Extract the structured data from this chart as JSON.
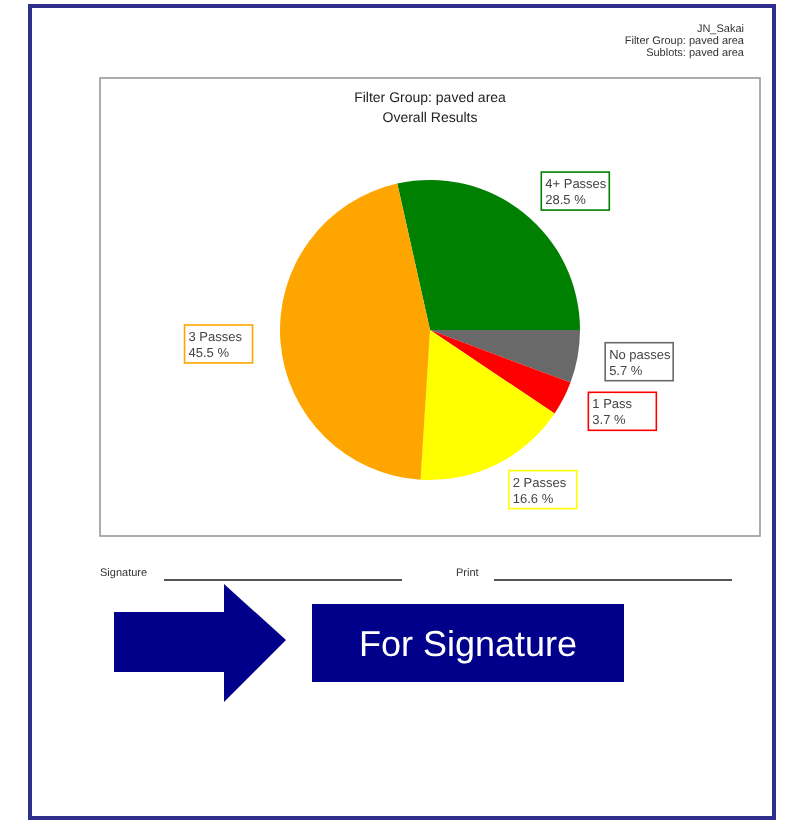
{
  "chart_data": {
    "type": "pie",
    "title": "Filter Group: paved area",
    "subtitle": "Overall Results",
    "categories": [
      "4+ Passes",
      "No passes",
      "1 Pass",
      "2 Passes",
      "3 Passes"
    ],
    "values": [
      28.5,
      5.7,
      3.7,
      16.6,
      45.5
    ],
    "colors": [
      "#008000",
      "#696969",
      "#ff0000",
      "#ffff00",
      "#ffa500"
    ],
    "value_labels": [
      "28.5 %",
      "5.7 %",
      "3.7 %",
      "16.6 %",
      "45.5 %"
    ],
    "annotations": [
      "JN_Sakai",
      "Filter Group: paved area",
      "Sublots: paved area",
      "Signature",
      "Print",
      "For Signature"
    ]
  }
}
